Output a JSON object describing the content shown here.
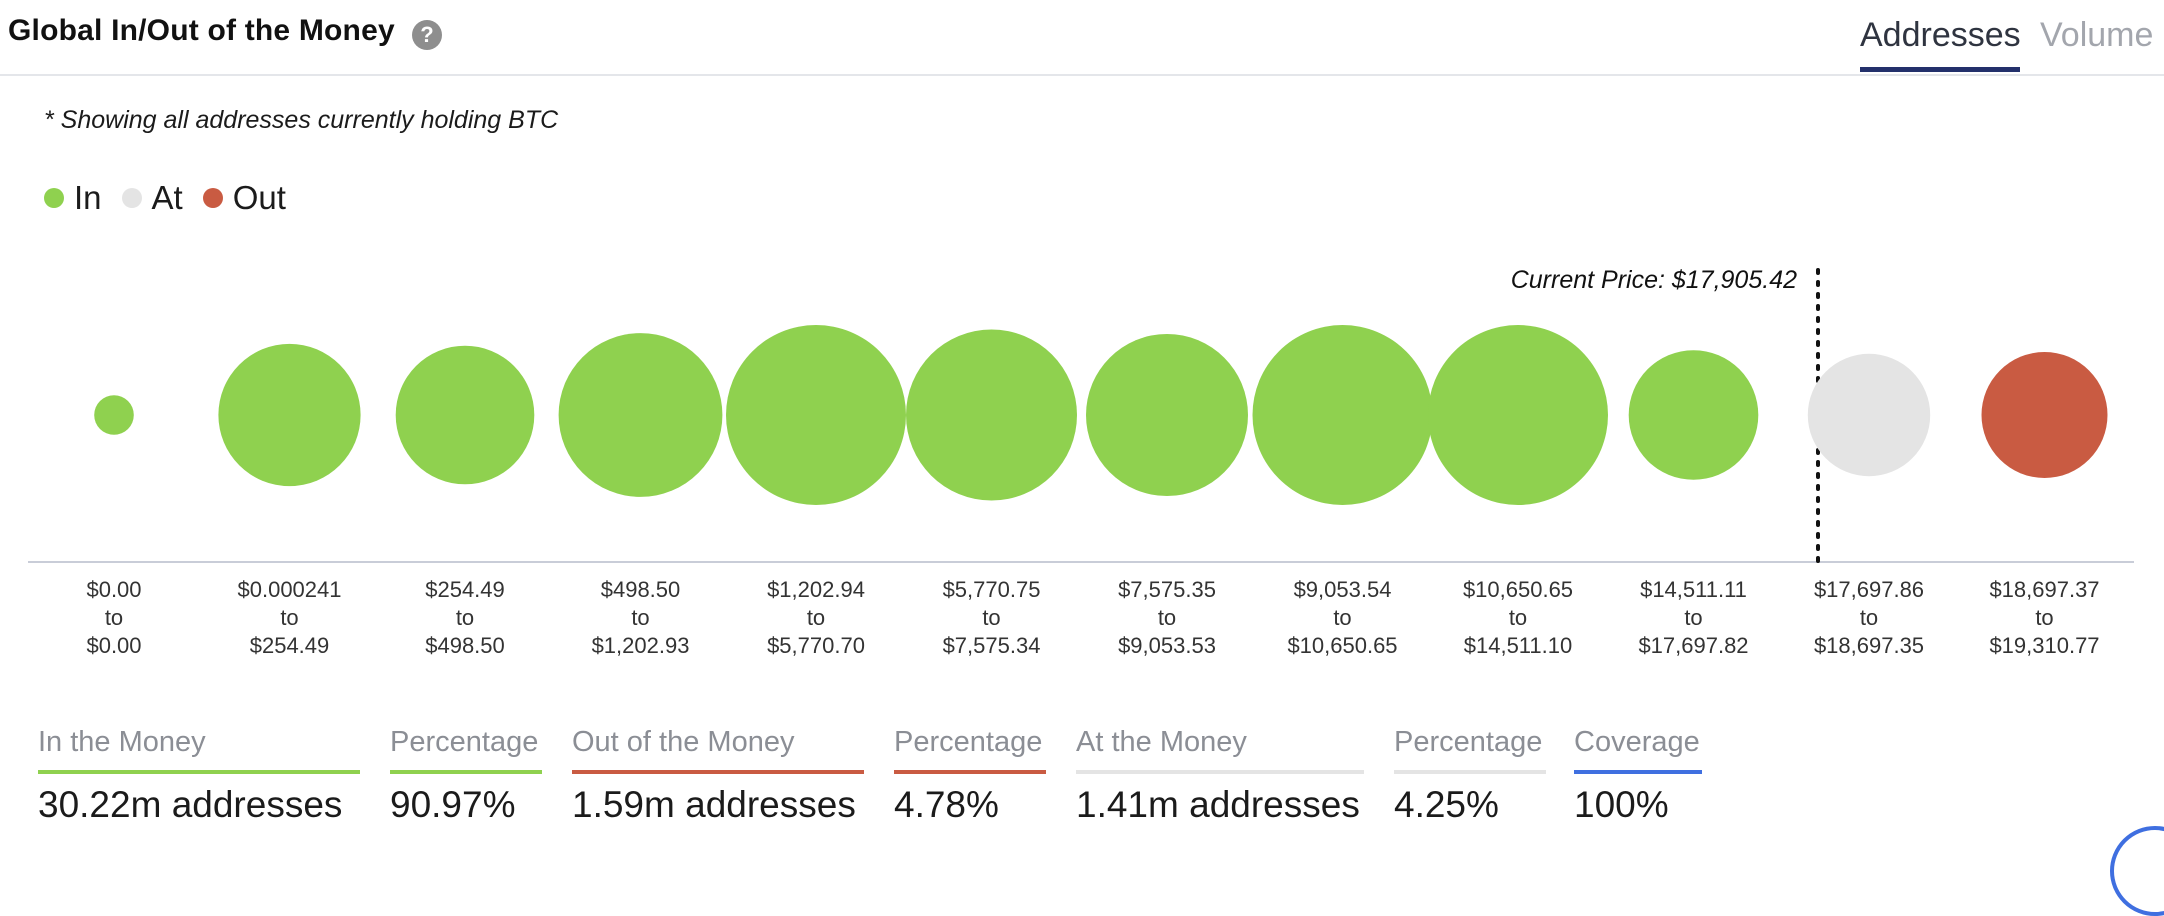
{
  "header": {
    "title": "Global In/Out of the Money",
    "help_icon": "question-circle-icon",
    "tabs": [
      {
        "label": "Addresses",
        "active": true
      },
      {
        "label": "Volume",
        "active": false
      }
    ]
  },
  "note": "* Showing all addresses currently holding BTC",
  "legend": [
    {
      "label": "In",
      "color": "#8fd14f"
    },
    {
      "label": "At",
      "color": "#e4e4e4"
    },
    {
      "label": "Out",
      "color": "#c95b42"
    }
  ],
  "current_price_label": "Current Price: $17,905.42",
  "chart_data": {
    "type": "bubble",
    "categories": [
      {
        "from": "$0.00",
        "to_word": "to",
        "to": "$0.00",
        "status": "in",
        "size": 0.22
      },
      {
        "from": "$0.000241",
        "to_word": "to",
        "to": "$254.49",
        "status": "in",
        "size": 0.79
      },
      {
        "from": "$254.49",
        "to_word": "to",
        "to": "$498.50",
        "status": "in",
        "size": 0.77
      },
      {
        "from": "$498.50",
        "to_word": "to",
        "to": "$1,202.93",
        "status": "in",
        "size": 0.91
      },
      {
        "from": "$1,202.94",
        "to_word": "to",
        "to": "$5,770.70",
        "status": "in",
        "size": 1.0
      },
      {
        "from": "$5,770.75",
        "to_word": "to",
        "to": "$7,575.34",
        "status": "in",
        "size": 0.95
      },
      {
        "from": "$7,575.35",
        "to_word": "to",
        "to": "$9,053.53",
        "status": "in",
        "size": 0.9
      },
      {
        "from": "$9,053.54",
        "to_word": "to",
        "to": "$10,650.65",
        "status": "in",
        "size": 1.0
      },
      {
        "from": "$10,650.65",
        "to_word": "to",
        "to": "$14,511.10",
        "status": "in",
        "size": 1.0
      },
      {
        "from": "$14,511.11",
        "to_word": "to",
        "to": "$17,697.82",
        "status": "in",
        "size": 0.72
      },
      {
        "from": "$17,697.86",
        "to_word": "to",
        "to": "$18,697.35",
        "status": "at",
        "size": 0.68
      },
      {
        "from": "$18,697.37",
        "to_word": "to",
        "to": "$19,310.77",
        "status": "out",
        "size": 0.7
      }
    ],
    "colors": {
      "in": "#8fd14f",
      "at": "#e4e4e4",
      "out": "#c95b42"
    },
    "current_price": 17905.42
  },
  "stats": [
    {
      "label": "In the Money",
      "value": "30.22m addresses",
      "color": "#8fd14f"
    },
    {
      "label": "Percentage",
      "value": "90.97%",
      "color": "#8fd14f"
    },
    {
      "label": "Out of the Money",
      "value": "1.59m addresses",
      "color": "#c95b42"
    },
    {
      "label": "Percentage",
      "value": "4.78%",
      "color": "#c95b42"
    },
    {
      "label": "At the Money",
      "value": "1.41m addresses",
      "color": "#e4e4e4"
    },
    {
      "label": "Percentage",
      "value": "4.25%",
      "color": "#e4e4e4"
    },
    {
      "label": "Coverage",
      "value": "100%",
      "color": "#3f6fe0"
    }
  ]
}
